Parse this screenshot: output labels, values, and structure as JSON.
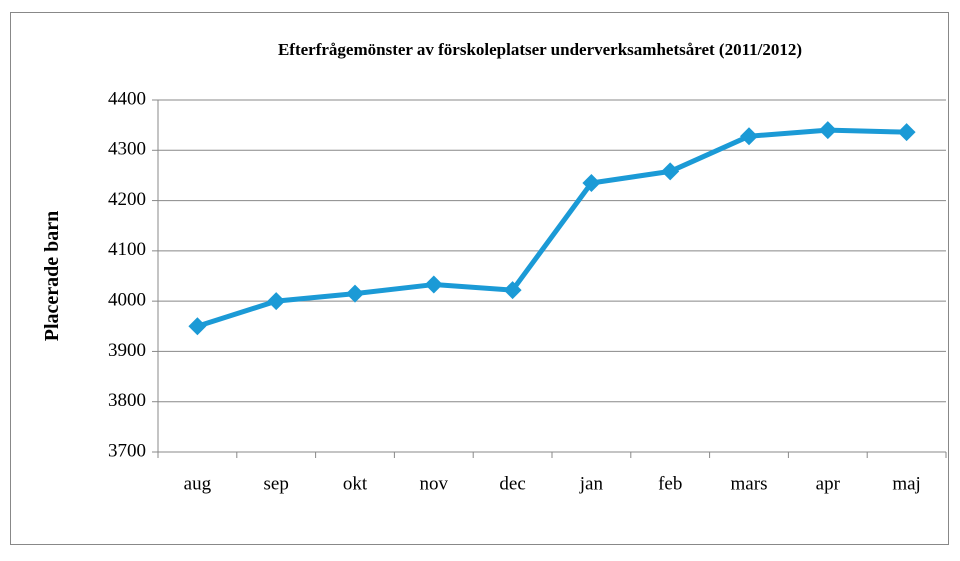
{
  "chart_data": {
    "type": "line",
    "title": "Efterfrågemönster av förskoleplatser underverksamhetsåret (2011/2012)",
    "y_label": "Placerade barn",
    "categories": [
      "aug",
      "sep",
      "okt",
      "nov",
      "dec",
      "jan",
      "feb",
      "mars",
      "apr",
      "maj"
    ],
    "series": [
      {
        "name": "Placerade barn",
        "color": "#1b9ad6",
        "values": [
          3950,
          4000,
          4015,
          4033,
          4022,
          4235,
          4258,
          4328,
          4340,
          4336
        ]
      }
    ],
    "ylim": [
      3700,
      4400
    ],
    "yticks": [
      3700,
      3800,
      3900,
      4000,
      4100,
      4200,
      4300,
      4400
    ],
    "grid": true
  }
}
